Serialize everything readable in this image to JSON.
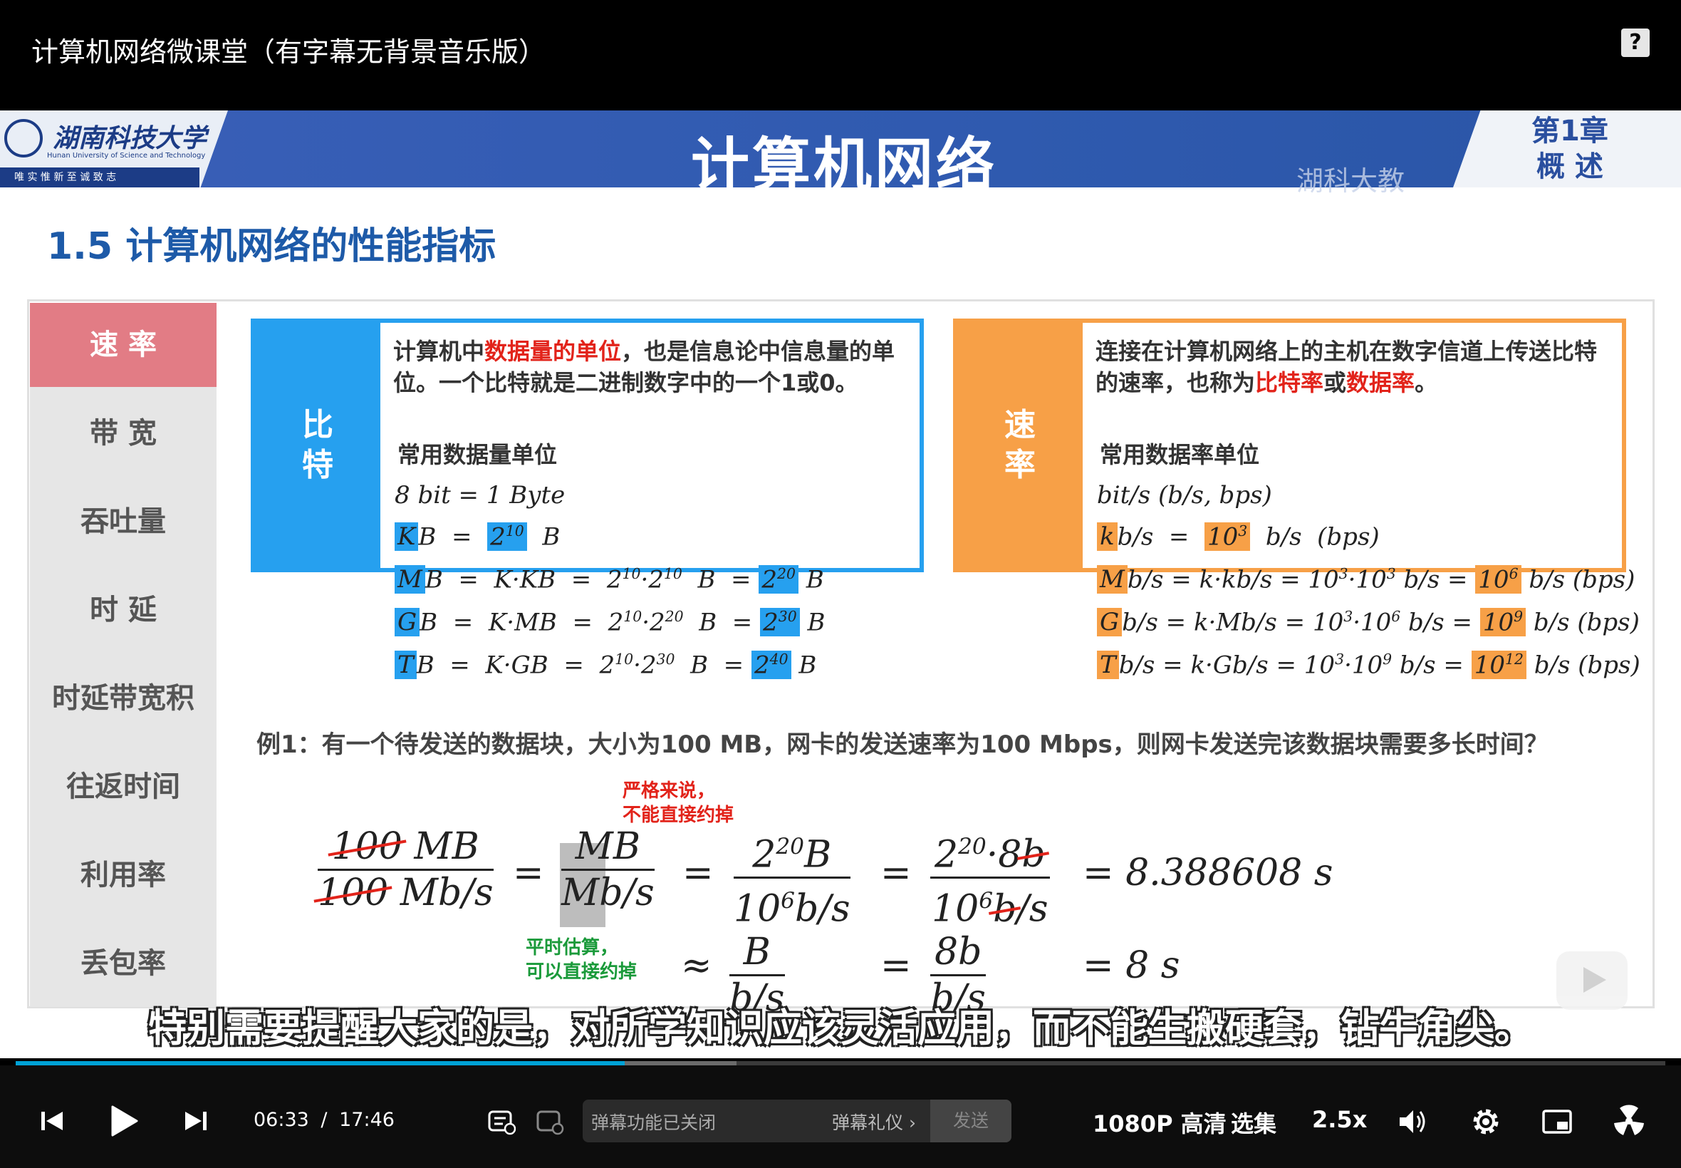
{
  "video_title": "计算机网络微课堂（有字幕无背景音乐版）",
  "help_icon": "?",
  "slide": {
    "logo_name": "湖南科技大学",
    "logo_en": "Hunan University of Science and Technology",
    "logo_motto": "唯 实 惟 新    至 诚 致 志",
    "course_title": "计算机网络",
    "watermark": "湖科大教",
    "chapter_line1": "第1章",
    "chapter_line2": "概  述",
    "section_title": "1.5 计算机网络的性能指标",
    "menu": [
      "速  率",
      "带  宽",
      "吞吐量",
      "时  延",
      "时延带宽积",
      "往返时间",
      "利用率",
      "丢包率"
    ],
    "bit_card": {
      "side_label": "比\n特",
      "text_pre": "计算机中",
      "text_hl": "数据量的单位",
      "text_post": "，也是信息论中信息量的单位。一个比特就是二进制数字中的一个1或0。",
      "sub": "常用数据量单位",
      "line1": "8  bit  =  1  Byte"
    },
    "rate_card": {
      "side_label": "速\n率",
      "text_pre": "连接在计算机网络上的主机在数字信道上传送比特的速率，也称为",
      "text_hl1": "比特率",
      "text_mid": "或",
      "text_hl2": "数据率",
      "text_post": "。",
      "sub": "常用数据率单位",
      "line1": "bit/s  (b/s,  bps)"
    },
    "example": "例1：有一个待发送的数据块，大小为100 MB，网卡的发送速率为100 Mbps，则网卡发送完该数据块需要多长时间？",
    "note_red": "严格来说，\n不能直接约掉",
    "note_green": "平时估算，\n可以直接约掉",
    "eq_result1": "=  8.388608  s",
    "eq_result2": "=  8  s"
  },
  "subtitle": "特别需要提醒大家的是，对所学知识应该灵活应用，而不能生搬硬套，钻牛角尖。",
  "player": {
    "progress_fraction": 0.369,
    "current_time": "06:33",
    "separator": "/",
    "total_time": "17:46",
    "danmaku_status": "弹幕功能已关闭",
    "danmaku_etiquette": "弹幕礼仪 ›",
    "send_label": "发送",
    "quality": "1080P 高清",
    "episodes": "选集",
    "speed": "2.5x",
    "accent": "#00a1d6"
  }
}
